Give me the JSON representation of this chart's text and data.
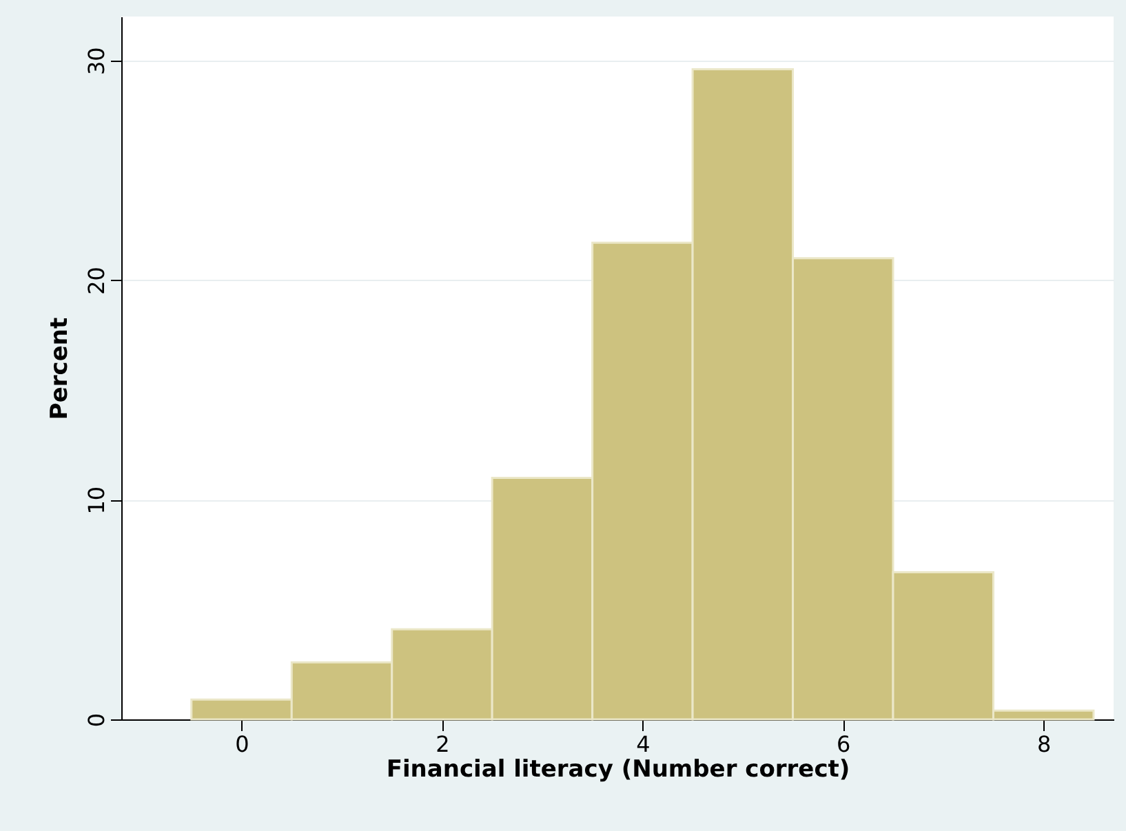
{
  "chart_data": {
    "type": "histogram",
    "xlabel": "Financial literacy (Number correct)",
    "ylabel": "Percent",
    "bins": [
      -0.5,
      0.5,
      1.5,
      2.5,
      3.5,
      4.5,
      5.5,
      6.5,
      7.5,
      8.5
    ],
    "values": [
      0.9,
      2.6,
      4.1,
      11.0,
      21.7,
      29.6,
      21.0,
      6.7,
      0.4
    ],
    "color": "#cdc27f",
    "xlim": [
      -1.2,
      8.7
    ],
    "xticks": [
      0,
      2,
      4,
      6,
      8
    ],
    "ylim": [
      0,
      32
    ],
    "yticks": [
      0,
      10,
      20,
      30
    ],
    "grid": "y"
  }
}
